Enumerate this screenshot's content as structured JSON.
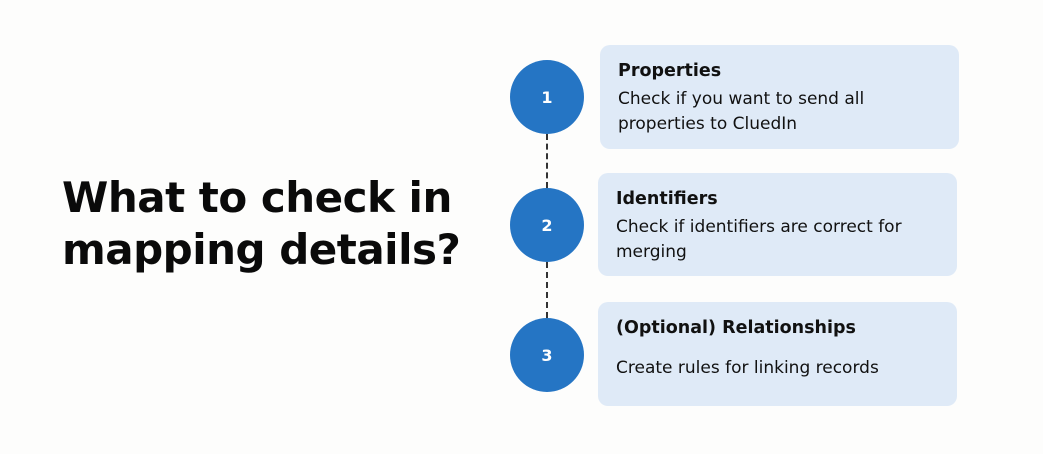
{
  "headline": {
    "line1": "What to check in",
    "line2": "mapping details?"
  },
  "colors": {
    "circle": "#2575c4",
    "card_background": "#dfeaf7",
    "connector": "#333333",
    "background": "#fdfdfc"
  },
  "steps": [
    {
      "number": "1",
      "title": "Properties",
      "description": "Check if you want to send all properties to CluedIn"
    },
    {
      "number": "2",
      "title": "Identifiers",
      "description": "Check if identifiers are correct for merging"
    },
    {
      "number": "3",
      "title": "(Optional) Relationships",
      "description": "Create rules for linking records"
    }
  ]
}
